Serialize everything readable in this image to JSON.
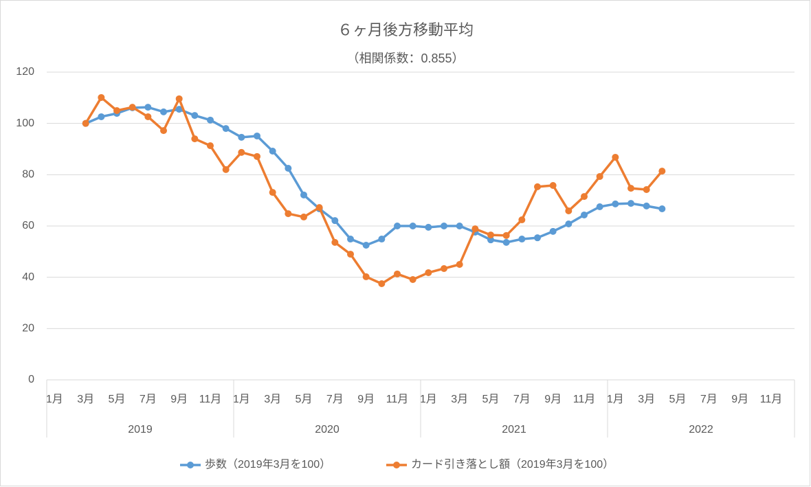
{
  "chart_data": {
    "type": "line",
    "title": "６ヶ月後方移動平均",
    "subtitle": "（相関係数：0.855）",
    "categories": [
      "1月",
      null,
      "3月",
      null,
      "5月",
      null,
      "7月",
      null,
      "9月",
      null,
      "11月",
      null,
      "1月",
      null,
      "3月",
      null,
      "5月",
      null,
      "7月",
      null,
      "9月",
      null,
      "11月",
      null,
      "1月",
      null,
      "3月",
      null,
      "5月",
      null,
      "7月",
      null,
      "9月",
      null,
      "11月",
      null,
      "1月",
      null,
      "3月",
      null,
      "5月",
      null,
      "7月",
      null,
      "9月",
      null,
      "11月",
      null
    ],
    "x_groups": [
      "2019",
      "2020",
      "2021",
      "2022"
    ],
    "series": [
      {
        "name": "歩数（2019年3月を100）",
        "color": "#5b9bd5",
        "values": [
          null,
          null,
          100,
          102.6,
          103.9,
          106.1,
          106.3,
          104.5,
          105.5,
          103.1,
          101.3,
          98.0,
          94.6,
          95.1,
          89.2,
          82.5,
          72.1,
          66.7,
          62.1,
          54.9,
          52.5,
          54.9,
          60.0,
          60.0,
          59.5,
          60.0,
          60.0,
          57.6,
          54.6,
          53.6,
          54.9,
          55.4,
          57.9,
          60.8,
          64.3,
          67.5,
          68.6,
          68.8,
          67.8,
          66.7,
          null,
          null,
          null,
          null,
          null,
          null,
          null,
          null
        ]
      },
      {
        "name": "カード引き落とし額（2019年3月を100）",
        "color": "#ed7d31",
        "values": [
          null,
          null,
          100,
          110.1,
          105.0,
          106.3,
          102.6,
          97.2,
          109.6,
          94.0,
          91.3,
          82.0,
          88.7,
          87.1,
          73.1,
          64.8,
          63.5,
          67.2,
          53.6,
          49.0,
          40.2,
          37.5,
          41.3,
          39.1,
          41.8,
          43.4,
          45.0,
          58.9,
          56.5,
          56.3,
          62.4,
          75.3,
          75.8,
          65.9,
          71.5,
          79.3,
          86.8,
          74.7,
          74.2,
          81.4,
          null,
          null,
          null,
          null,
          null,
          null,
          null,
          null
        ]
      }
    ],
    "ylim": [
      0,
      120
    ],
    "yticks": [
      0,
      20,
      40,
      60,
      80,
      100,
      120
    ],
    "grid": true,
    "legend": "bottom"
  }
}
